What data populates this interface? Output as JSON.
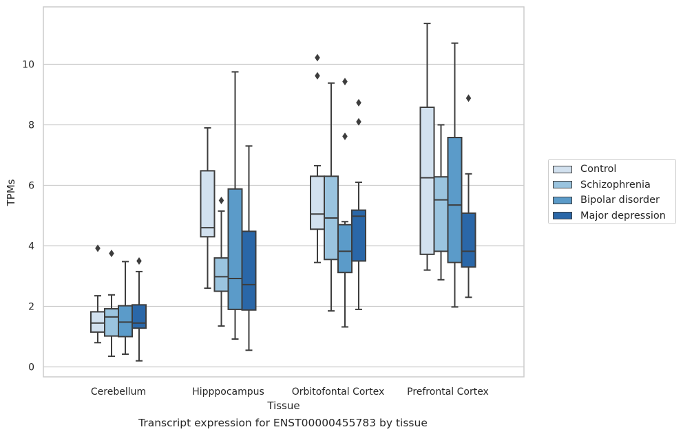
{
  "chart_data": {
    "type": "box",
    "title": "",
    "caption": "Transcript expression for ENST00000455783 by tissue",
    "xlabel": "Tissue",
    "ylabel": "TPMs",
    "ylim": [
      -0.35,
      11.9
    ],
    "yticks": [
      0,
      2,
      4,
      6,
      8,
      10
    ],
    "grid": "horizontal",
    "legend_position": "right",
    "categories": [
      "Cerebellum",
      "Hipppocampus",
      "Orbitofontal Cortex",
      "Prefrontal Cortex"
    ],
    "series": [
      {
        "name": "Control",
        "color": "#d2e1ef",
        "boxes": [
          {
            "whisker_low": 0.8,
            "q1": 1.15,
            "median": 1.45,
            "q3": 1.82,
            "whisker_high": 2.35,
            "outliers": [
              3.92
            ]
          },
          {
            "whisker_low": 2.6,
            "q1": 4.3,
            "median": 4.6,
            "q3": 6.48,
            "whisker_high": 7.9,
            "outliers": []
          },
          {
            "whisker_low": 3.45,
            "q1": 4.55,
            "median": 5.05,
            "q3": 6.3,
            "whisker_high": 6.65,
            "outliers": [
              9.62,
              10.22
            ]
          },
          {
            "whisker_low": 3.2,
            "q1": 3.72,
            "median": 6.25,
            "q3": 8.58,
            "whisker_high": 11.35,
            "outliers": []
          }
        ]
      },
      {
        "name": "Schizophrenia",
        "color": "#9ac4df",
        "boxes": [
          {
            "whisker_low": 0.35,
            "q1": 1.02,
            "median": 1.65,
            "q3": 1.92,
            "whisker_high": 2.38,
            "outliers": [
              3.75
            ]
          },
          {
            "whisker_low": 1.35,
            "q1": 2.5,
            "median": 2.98,
            "q3": 3.6,
            "whisker_high": 5.15,
            "outliers": [
              5.5
            ]
          },
          {
            "whisker_low": 1.85,
            "q1": 3.55,
            "median": 4.92,
            "q3": 6.3,
            "whisker_high": 9.38,
            "outliers": []
          },
          {
            "whisker_low": 2.88,
            "q1": 3.82,
            "median": 5.52,
            "q3": 6.28,
            "whisker_high": 8.0,
            "outliers": []
          }
        ]
      },
      {
        "name": "Bipolar disorder",
        "color": "#5b9bc9",
        "boxes": [
          {
            "whisker_low": 0.42,
            "q1": 1.0,
            "median": 1.48,
            "q3": 2.02,
            "whisker_high": 3.48,
            "outliers": []
          },
          {
            "whisker_low": 0.92,
            "q1": 1.9,
            "median": 2.92,
            "q3": 5.88,
            "whisker_high": 9.75,
            "outliers": []
          },
          {
            "whisker_low": 1.32,
            "q1": 3.12,
            "median": 3.82,
            "q3": 4.7,
            "whisker_high": 4.8,
            "outliers": [
              7.62,
              9.43
            ]
          },
          {
            "whisker_low": 1.98,
            "q1": 3.45,
            "median": 5.35,
            "q3": 7.58,
            "whisker_high": 10.7,
            "outliers": []
          }
        ]
      },
      {
        "name": "Major depression",
        "color": "#2a67a8",
        "boxes": [
          {
            "whisker_low": 0.2,
            "q1": 1.28,
            "median": 1.45,
            "q3": 2.05,
            "whisker_high": 3.15,
            "outliers": [
              3.5
            ]
          },
          {
            "whisker_low": 0.55,
            "q1": 1.88,
            "median": 2.72,
            "q3": 4.48,
            "whisker_high": 7.3,
            "outliers": []
          },
          {
            "whisker_low": 1.9,
            "q1": 3.5,
            "median": 4.98,
            "q3": 5.18,
            "whisker_high": 6.1,
            "outliers": [
              8.1,
              8.73
            ]
          },
          {
            "whisker_low": 2.3,
            "q1": 3.3,
            "median": 3.82,
            "q3": 5.08,
            "whisker_high": 6.38,
            "outliers": [
              8.88
            ]
          }
        ]
      }
    ]
  }
}
